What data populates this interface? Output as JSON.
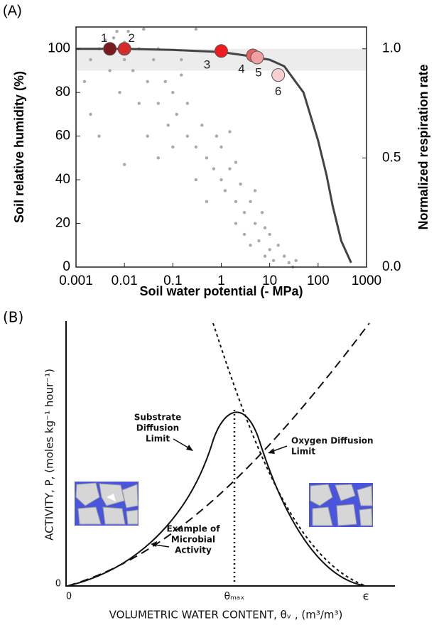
{
  "chart_data": [
    {
      "type": "scatter",
      "panel_label": "(A)",
      "xlabel": "Soil water potential (- MPa)",
      "ylabel": "Soil relative humidity (%)",
      "y2label": "Normalized respiration rate",
      "xscale": "log",
      "xlim": [
        0.001,
        1000
      ],
      "ylim": [
        0,
        110
      ],
      "y2lim": [
        0,
        1.1
      ],
      "xticks": [
        0.001,
        0.01,
        0.1,
        1,
        10,
        100,
        1000
      ],
      "yticks": [
        0,
        20,
        40,
        60,
        80,
        100
      ],
      "y2ticks": [
        {
          "value": 0,
          "label": "0.0"
        },
        {
          "value": 0.5,
          "label": "0.5"
        },
        {
          "value": 1,
          "label": "1.0"
        }
      ],
      "band": [
        90,
        100
      ],
      "band_color": "#ececec",
      "points": {
        "color": "#aaaaaa",
        "x": [
          0.0015,
          0.002,
          0.002,
          0.003,
          0.003,
          0.004,
          0.005,
          0.006,
          0.008,
          0.01,
          0.01,
          0.012,
          0.015,
          0.02,
          0.02,
          0.03,
          0.03,
          0.04,
          0.05,
          0.05,
          0.05,
          0.07,
          0.08,
          0.1,
          0.1,
          0.12,
          0.15,
          0.2,
          0.2,
          0.3,
          0.3,
          0.4,
          0.5,
          0.5,
          0.7,
          0.8,
          1,
          1,
          1.2,
          1.5,
          2,
          2,
          2.5,
          3,
          3,
          4,
          4,
          5,
          6,
          7,
          8,
          10,
          10,
          12,
          15,
          20,
          25,
          30,
          35,
          0.01,
          0.007,
          0.025,
          0.3,
          1.5,
          0.15,
          2,
          5,
          8
        ],
        "y": [
          85,
          70,
          95,
          100,
          60,
          104,
          90,
          105,
          80,
          47,
          95,
          108,
          90,
          75,
          100,
          85,
          60,
          95,
          50,
          75,
          100,
          85,
          65,
          80,
          55,
          70,
          95,
          60,
          75,
          55,
          40,
          65,
          50,
          30,
          45,
          60,
          40,
          55,
          35,
          45,
          30,
          20,
          38,
          25,
          15,
          30,
          10,
          20,
          12,
          25,
          5,
          15,
          8,
          3,
          10,
          5,
          2,
          0,
          3,
          103,
          108,
          109,
          109,
          62,
          88,
          48,
          35,
          18
        ]
      },
      "curve": {
        "axis": "y2",
        "color": "#444444",
        "x": [
          0.001,
          0.01,
          0.1,
          1,
          3,
          10,
          20,
          50,
          100,
          150,
          200,
          300,
          480
        ],
        "values": [
          1.0,
          1.0,
          0.995,
          0.985,
          0.97,
          0.95,
          0.92,
          0.8,
          0.58,
          0.42,
          0.28,
          0.12,
          0.02
        ]
      },
      "markers": {
        "x": [
          0.005,
          0.01,
          1,
          4.5,
          5.5,
          15
        ],
        "y": [
          100,
          100,
          99,
          97,
          96,
          88
        ],
        "labels": [
          "1",
          "2",
          "3",
          "4",
          "5",
          "6"
        ],
        "colors": [
          "#7a1a1a",
          "#d42a2a",
          "#ee1c1c",
          "#e86060",
          "#f0a0a0",
          "#f8d0d0"
        ]
      }
    },
    {
      "type": "schematic",
      "panel_label": "(B)",
      "ylabel": "ACTIVITY,  P,  (moles kg⁻¹ hour⁻¹)",
      "xlabel": "VOLUMETRIC WATER CONTENT,  θᵥ ,  (m³/m³)",
      "x_origin": "0",
      "y_origin": "0",
      "x_peak": "θₘₐₓ",
      "x_end": "є",
      "substrate_label": [
        "Substrate",
        "Diffusion",
        "Limit"
      ],
      "oxygen_label": [
        "Oxygen Diffusion",
        "Limit"
      ],
      "activity_label": [
        "Example of",
        "Microbial",
        "Activity"
      ]
    }
  ]
}
